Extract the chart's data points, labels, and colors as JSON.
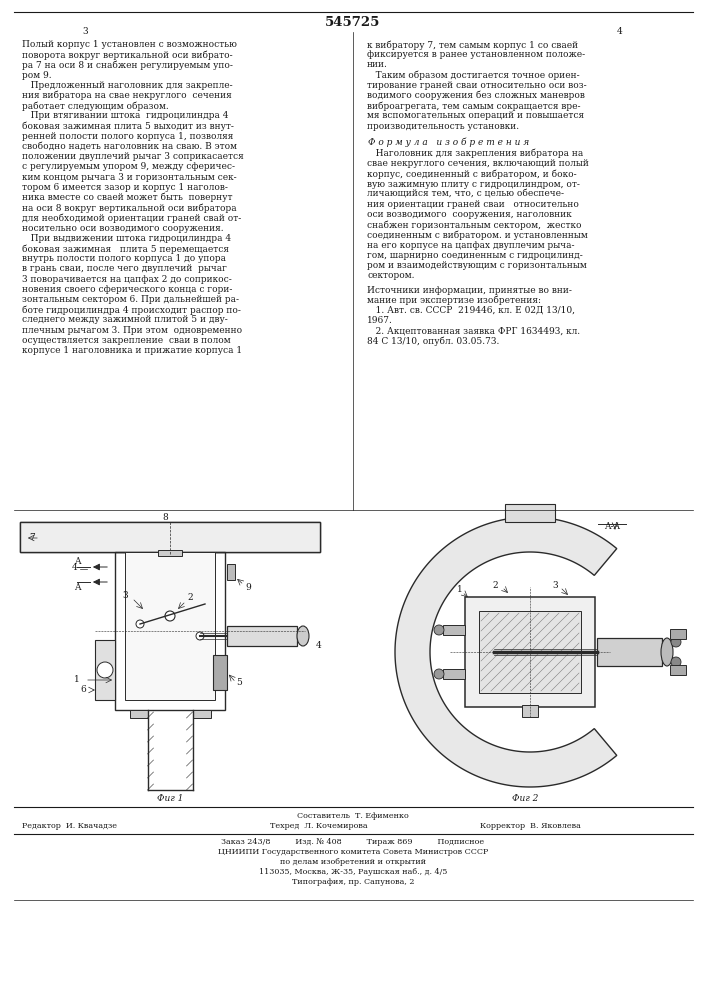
{
  "patent_number": "545725",
  "page_left": "3",
  "page_right": "4",
  "background_color": "#ffffff",
  "text_color": "#1a1a1a",
  "line_color": "#2a2a2a",
  "fig1_label": "Фиг 1",
  "fig2_label": "Фиг 2",
  "fig_section_label": "A-A",
  "col_left_text": [
    "Полый корпус 1 установлен с возможностью",
    "поворота вокруг вертикальной оси вибрато-",
    "ра 7 на оси 8 и снабжен регулируемым упо-",
    "ром 9.",
    "   Предложенный наголовник для закрепле-",
    "ния вибратора на свае некруглого  сечения",
    "работает следующим образом.",
    "   При втягивании штока  гидроцилиндра 4",
    "боковая зажимная плита 5 выходит из внут-",
    "ренней полости полого корпуса 1, позволяя",
    "свободно надеть наголовник на сваю. В этом",
    "положении двуплечий рычаг 3 соприкасается",
    "с регулируемым упором 9, между сферичес-",
    "ким концом рычага 3 и горизонтальным сек-",
    "тором 6 имеется зазор и корпус 1 наголов-",
    "ника вместе со сваей может быть  повернут",
    "на оси 8 вокруг вертикальной оси вибратора",
    "для необходимой ориентации граней свай от-",
    "носительно оси возводимого сооружения.",
    "   При выдвижении штока гидроцилиндра 4",
    "боковая зажимная   плита 5 перемещается",
    "внутрь полости полого корпуса 1 до упора",
    "в грань сваи, после чего двуплечий  рычаг",
    "3 поворачивается на цапфах 2 до соприкос-",
    "новения своего сферического конца с гори-",
    "зонтальным сектором 6. При дальнейшей ра-",
    "боте гидроцилиндра 4 происходит распор по-",
    "следнего между зажимной плитой 5 и дву-",
    "плечным рычагом 3. При этом  одновременно",
    "осуществляется закрепление  сваи в полом",
    "корпусе 1 наголовника и прижатие корпуса 1"
  ],
  "col_right_text_top": [
    "к вибратору 7, тем самым корпус 1 со сваей",
    "фиксируется в ранее установленном положе-",
    "нии.",
    "   Таким образом достигается точное ориен-",
    "тирование граней сваи относительно оси воз-",
    "водимого сооружения без сложных маневров",
    "виброагрегата, тем самым сокращается вре-",
    "мя вспомогательных операций и повышается",
    "производительность установки."
  ],
  "formula_header": "Ф о р м у л а   и з о б р е т е н и я",
  "formula_text": [
    "   Наголовник для закрепления вибратора на",
    "свае некруглого сечения, включающий полый",
    "корпус, соединенный с вибратором, и боко-",
    "вую зажимную плиту с гидроцилиндром, от-",
    "личающийся тем, что, с целью обеспече-",
    "ния ориентации граней сваи   относительно",
    "оси возводимого  сооружения, наголовник",
    "снабжен горизонтальным сектором,  жестко",
    "соединенным с вибратором. и установленным",
    "на его корпусе на цапфах двуплечим рыча-",
    "гом, шарнирно соединенным с гидроцилинд-",
    "ром и взаимодействующим с горизонтальным",
    "сектором."
  ],
  "sources_header": "Источники информации, принятые во вни-",
  "sources_text": [
    "мание при экспертизе изобретения:",
    "   1. Авт. св. СССР  219446, кл. Е 02Д 13/10,",
    "1967.",
    "   2. Акцептованная заявка ФРГ 1634493, кл.",
    "84 С 13/10, опубл. 03.05.73."
  ],
  "bottom_info": [
    "Заказ 243/8          Изд. № 408          Тираж 869          Подписное",
    "ЦНИИПИ Государственного комитета Совета Министров СССР",
    "по делам изобретений и открытий",
    "113035, Москва, Ж-35, Раушская наб., д. 4/5",
    "Типография, пр. Сапунова, 2"
  ]
}
